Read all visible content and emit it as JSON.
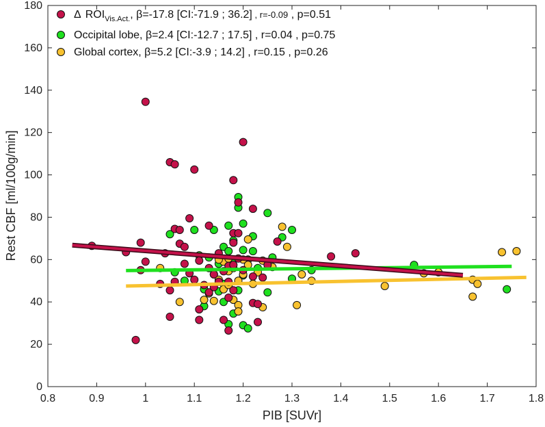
{
  "chart_data": {
    "type": "scatter",
    "xlabel": "PIB [SUVr]",
    "ylabel": "Rest CBF [ml/100g/min]",
    "xlim": [
      0.8,
      1.8
    ],
    "ylim": [
      0,
      180
    ],
    "xticks": [
      "0.8",
      "0.9",
      "1",
      "1.1",
      "1.2",
      "1.3",
      "1.4",
      "1.5",
      "1.6",
      "1.7",
      "1.8"
    ],
    "yticks": [
      "0",
      "20",
      "40",
      "60",
      "80",
      "100",
      "120",
      "140",
      "160",
      "180"
    ],
    "grid": false,
    "legend_position": "top-left",
    "series": [
      {
        "key": "roi",
        "color": "#c4124a",
        "legend": {
          "delta": "Δ",
          "main": "ROI",
          "sub": "Vis.Act.",
          "beta": ", β=-17.8 [CI:-71.9 ; 36.2]",
          "r": " , r=-0.09",
          "p": " , p=0.51"
        },
        "fit": {
          "x": [
            0.85,
            1.65
          ],
          "y": [
            66.8,
            52.6
          ]
        },
        "points": [
          [
            0.89,
            66.5
          ],
          [
            0.96,
            63.5
          ],
          [
            0.98,
            22.0
          ],
          [
            0.99,
            55.0
          ],
          [
            0.99,
            68.0
          ],
          [
            1.0,
            59.0
          ],
          [
            1.0,
            134.5
          ],
          [
            1.03,
            48.5
          ],
          [
            1.04,
            63.0
          ],
          [
            1.05,
            106.0
          ],
          [
            1.05,
            33.0
          ],
          [
            1.05,
            45.5
          ],
          [
            1.06,
            105.0
          ],
          [
            1.06,
            74.5
          ],
          [
            1.06,
            49.5
          ],
          [
            1.07,
            67.5
          ],
          [
            1.07,
            74.0
          ],
          [
            1.08,
            66.0
          ],
          [
            1.08,
            58.0
          ],
          [
            1.09,
            79.5
          ],
          [
            1.1,
            102.5
          ],
          [
            1.09,
            53.5
          ],
          [
            1.1,
            50.5
          ],
          [
            1.11,
            59.5
          ],
          [
            1.11,
            36.5
          ],
          [
            1.11,
            31.5
          ],
          [
            1.12,
            48.0
          ],
          [
            1.13,
            76.0
          ],
          [
            1.13,
            56.0
          ],
          [
            1.13,
            44.5
          ],
          [
            1.14,
            53.0
          ],
          [
            1.14,
            47.0
          ],
          [
            1.15,
            63.0
          ],
          [
            1.15,
            49.5
          ],
          [
            1.16,
            54.5
          ],
          [
            1.16,
            31.5
          ],
          [
            1.17,
            57.0
          ],
          [
            1.17,
            49.5
          ],
          [
            1.17,
            42.0
          ],
          [
            1.18,
            68.0
          ],
          [
            1.18,
            72.5
          ],
          [
            1.18,
            57.5
          ],
          [
            1.18,
            45.5
          ],
          [
            1.17,
            26.5
          ],
          [
            1.19,
            87.0
          ],
          [
            1.18,
            97.5
          ],
          [
            1.19,
            72.5
          ],
          [
            1.19,
            60.5
          ],
          [
            1.2,
            115.5
          ],
          [
            1.2,
            55.0
          ],
          [
            1.22,
            84.0
          ],
          [
            1.22,
            52.0
          ],
          [
            1.22,
            39.5
          ],
          [
            1.23,
            39.0
          ],
          [
            1.23,
            30.5
          ],
          [
            1.24,
            51.5
          ],
          [
            1.27,
            68.5
          ],
          [
            1.38,
            61.5
          ],
          [
            1.43,
            63.0
          ],
          [
            1.25,
            57.5
          ]
        ]
      },
      {
        "key": "occ",
        "color": "#1fe01f",
        "legend": {
          "main": "Occipital lobe,",
          "beta": " β=2.4 [CI:-12.7 ; 17.5]",
          "r": " , r=0.04",
          "p": " , p=0.75"
        },
        "fit": {
          "x": [
            0.96,
            1.75
          ],
          "y": [
            54.8,
            56.8
          ]
        },
        "points": [
          [
            1.05,
            72.0
          ],
          [
            1.06,
            54.0
          ],
          [
            1.08,
            50.0
          ],
          [
            1.1,
            74.0
          ],
          [
            1.11,
            62.0
          ],
          [
            1.12,
            46.0
          ],
          [
            1.12,
            38.0
          ],
          [
            1.13,
            61.0
          ],
          [
            1.14,
            74.0
          ],
          [
            1.14,
            53.0
          ],
          [
            1.15,
            58.0
          ],
          [
            1.15,
            45.0
          ],
          [
            1.16,
            66.0
          ],
          [
            1.16,
            40.0
          ],
          [
            1.17,
            76.0
          ],
          [
            1.17,
            29.5
          ],
          [
            1.18,
            69.0
          ],
          [
            1.18,
            60.0
          ],
          [
            1.18,
            34.5
          ],
          [
            1.19,
            89.5
          ],
          [
            1.19,
            84.5
          ],
          [
            1.19,
            45.5
          ],
          [
            1.2,
            77.0
          ],
          [
            1.2,
            64.5
          ],
          [
            1.2,
            52.5
          ],
          [
            1.2,
            29.0
          ],
          [
            1.21,
            27.5
          ],
          [
            1.21,
            60.0
          ],
          [
            1.22,
            71.0
          ],
          [
            1.22,
            64.0
          ],
          [
            1.23,
            56.0
          ],
          [
            1.25,
            82.0
          ],
          [
            1.25,
            44.5
          ],
          [
            1.26,
            61.0
          ],
          [
            1.28,
            70.5
          ],
          [
            1.3,
            74.0
          ],
          [
            1.3,
            51.0
          ],
          [
            1.34,
            55.0
          ],
          [
            1.55,
            57.5
          ],
          [
            1.74,
            46.0
          ],
          [
            1.17,
            64.0
          ],
          [
            1.16,
            48.5
          ]
        ]
      },
      {
        "key": "glob",
        "color": "#f8c230",
        "legend": {
          "main": "Global cortex,",
          "beta": " β=5.2 [CI:-3.9 ; 14.2]",
          "r": " , r=0.15",
          "p": " , p=0.26"
        },
        "fit": {
          "x": [
            0.96,
            1.78
          ],
          "y": [
            47.5,
            51.6
          ]
        },
        "points": [
          [
            1.03,
            56.0
          ],
          [
            1.07,
            40.0
          ],
          [
            1.12,
            41.0
          ],
          [
            1.13,
            44.0
          ],
          [
            1.14,
            40.5
          ],
          [
            1.15,
            50.5
          ],
          [
            1.16,
            59.0
          ],
          [
            1.16,
            46.0
          ],
          [
            1.17,
            60.5
          ],
          [
            1.17,
            54.5
          ],
          [
            1.17,
            48.0
          ],
          [
            1.18,
            56.0
          ],
          [
            1.18,
            41.0
          ],
          [
            1.19,
            50.0
          ],
          [
            1.19,
            38.5
          ],
          [
            1.19,
            35.5
          ],
          [
            1.2,
            60.0
          ],
          [
            1.2,
            53.0
          ],
          [
            1.21,
            69.5
          ],
          [
            1.21,
            57.5
          ],
          [
            1.22,
            48.5
          ],
          [
            1.23,
            54.0
          ],
          [
            1.24,
            59.5
          ],
          [
            1.26,
            56.5
          ],
          [
            1.28,
            75.5
          ],
          [
            1.29,
            66.0
          ],
          [
            1.31,
            38.5
          ],
          [
            1.32,
            53.0
          ],
          [
            1.34,
            50.0
          ],
          [
            1.49,
            47.5
          ],
          [
            1.57,
            53.5
          ],
          [
            1.6,
            54.0
          ],
          [
            1.67,
            42.5
          ],
          [
            1.67,
            50.5
          ],
          [
            1.68,
            48.5
          ],
          [
            1.73,
            63.5
          ],
          [
            1.76,
            64.0
          ],
          [
            1.15,
            60.0
          ],
          [
            1.24,
            37.5
          ]
        ]
      }
    ]
  }
}
